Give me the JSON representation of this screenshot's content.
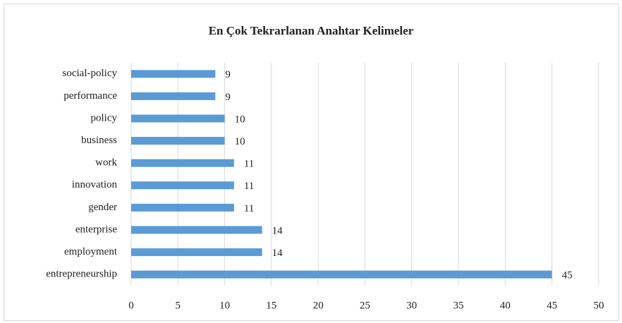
{
  "chart_data": {
    "type": "bar",
    "orientation": "horizontal",
    "title": "En Çok Tekrarlanan Anahtar Kelimeler",
    "categories": [
      "social-policy",
      "performance",
      "policy",
      "business",
      "work",
      "innovation",
      "gender",
      "enterprise",
      "employment",
      "entrepreneurship"
    ],
    "values": [
      9,
      9,
      10,
      10,
      11,
      11,
      11,
      14,
      14,
      45
    ],
    "color": "#5b9bd5",
    "xlim": [
      0,
      50
    ],
    "xticks": [
      0,
      5,
      10,
      15,
      20,
      25,
      30,
      35,
      40,
      45,
      50
    ],
    "grid": true
  }
}
